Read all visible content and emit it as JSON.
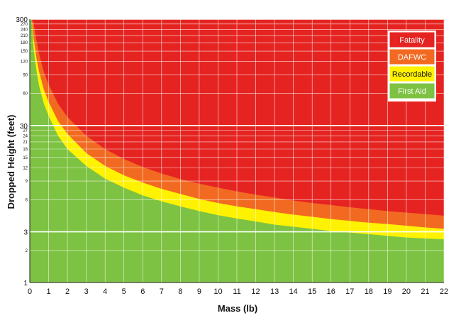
{
  "chart_data": {
    "type": "area",
    "xlabel": "Mass (lb)",
    "ylabel": "Dropped Height (feet)",
    "xlim": [
      0,
      22
    ],
    "ylim": [
      1,
      300
    ],
    "y_scale": "log",
    "grid": true,
    "legend_placement": "top-right",
    "x_ticks": [
      "0",
      "1",
      "2",
      "3",
      "4",
      "5",
      "6",
      "7",
      "8",
      "9",
      "10",
      "11",
      "12",
      "13",
      "14",
      "15",
      "16",
      "17",
      "18",
      "19",
      "20",
      "21",
      "22"
    ],
    "y_ticks": [
      {
        "value": 1,
        "label": "1",
        "major": true
      },
      {
        "value": 2,
        "label": "2",
        "major": false
      },
      {
        "value": 3,
        "label": "3",
        "major": true
      },
      {
        "value": 6,
        "label": "6",
        "major": false
      },
      {
        "value": 9,
        "label": "9",
        "major": false
      },
      {
        "value": 12,
        "label": "12",
        "major": false
      },
      {
        "value": 15,
        "label": "15",
        "major": false
      },
      {
        "value": 18,
        "label": "18",
        "major": false
      },
      {
        "value": 21,
        "label": "21",
        "major": false
      },
      {
        "value": 24,
        "label": "24",
        "major": false
      },
      {
        "value": 27,
        "label": "27",
        "major": false
      },
      {
        "value": 30,
        "label": "30",
        "major": true
      },
      {
        "value": 60,
        "label": "60",
        "major": false
      },
      {
        "value": 90,
        "label": "90",
        "major": false
      },
      {
        "value": 120,
        "label": "120",
        "major": false
      },
      {
        "value": 150,
        "label": "150",
        "major": false
      },
      {
        "value": 180,
        "label": "180",
        "major": false
      },
      {
        "value": 210,
        "label": "210",
        "major": false
      },
      {
        "value": 240,
        "label": "240",
        "major": false
      },
      {
        "value": 270,
        "label": "270",
        "major": false
      },
      {
        "value": 300,
        "label": "300",
        "major": true
      }
    ],
    "boundaries": {
      "x": [
        0.1,
        0.2,
        0.35,
        0.5,
        0.75,
        1,
        1.5,
        2,
        3,
        4,
        5,
        6,
        7,
        8,
        9,
        10,
        11,
        12,
        13,
        14,
        15,
        16,
        17,
        18,
        19,
        20,
        21,
        22
      ],
      "first_aid_upper": [
        300,
        160,
        100,
        70,
        48,
        37,
        24,
        18,
        12.5,
        9.5,
        7.8,
        6.6,
        5.8,
        5.2,
        4.7,
        4.3,
        4.0,
        3.75,
        3.5,
        3.35,
        3.2,
        3.05,
        2.95,
        2.85,
        2.75,
        2.65,
        2.6,
        2.55
      ],
      "recordable_upper": [
        300,
        200,
        130,
        95,
        65,
        50,
        33,
        25,
        16.5,
        12.5,
        10.2,
        8.7,
        7.6,
        6.8,
        6.1,
        5.6,
        5.2,
        4.9,
        4.6,
        4.35,
        4.15,
        3.95,
        3.8,
        3.65,
        3.55,
        3.42,
        3.3,
        3.2
      ],
      "dafwc_upper": [
        300,
        280,
        190,
        140,
        95,
        73,
        48,
        36,
        24,
        18,
        14.5,
        12.2,
        10.6,
        9.4,
        8.5,
        7.8,
        7.2,
        6.7,
        6.3,
        5.9,
        5.6,
        5.35,
        5.1,
        4.9,
        4.7,
        4.55,
        4.4,
        4.25
      ]
    },
    "series": [
      {
        "name": "Fatality",
        "color": "#e52421"
      },
      {
        "name": "DAFWC",
        "color": "#f26a21"
      },
      {
        "name": "Recordable",
        "color": "#fff200"
      },
      {
        "name": "First Aid",
        "color": "#7dc242"
      }
    ]
  }
}
